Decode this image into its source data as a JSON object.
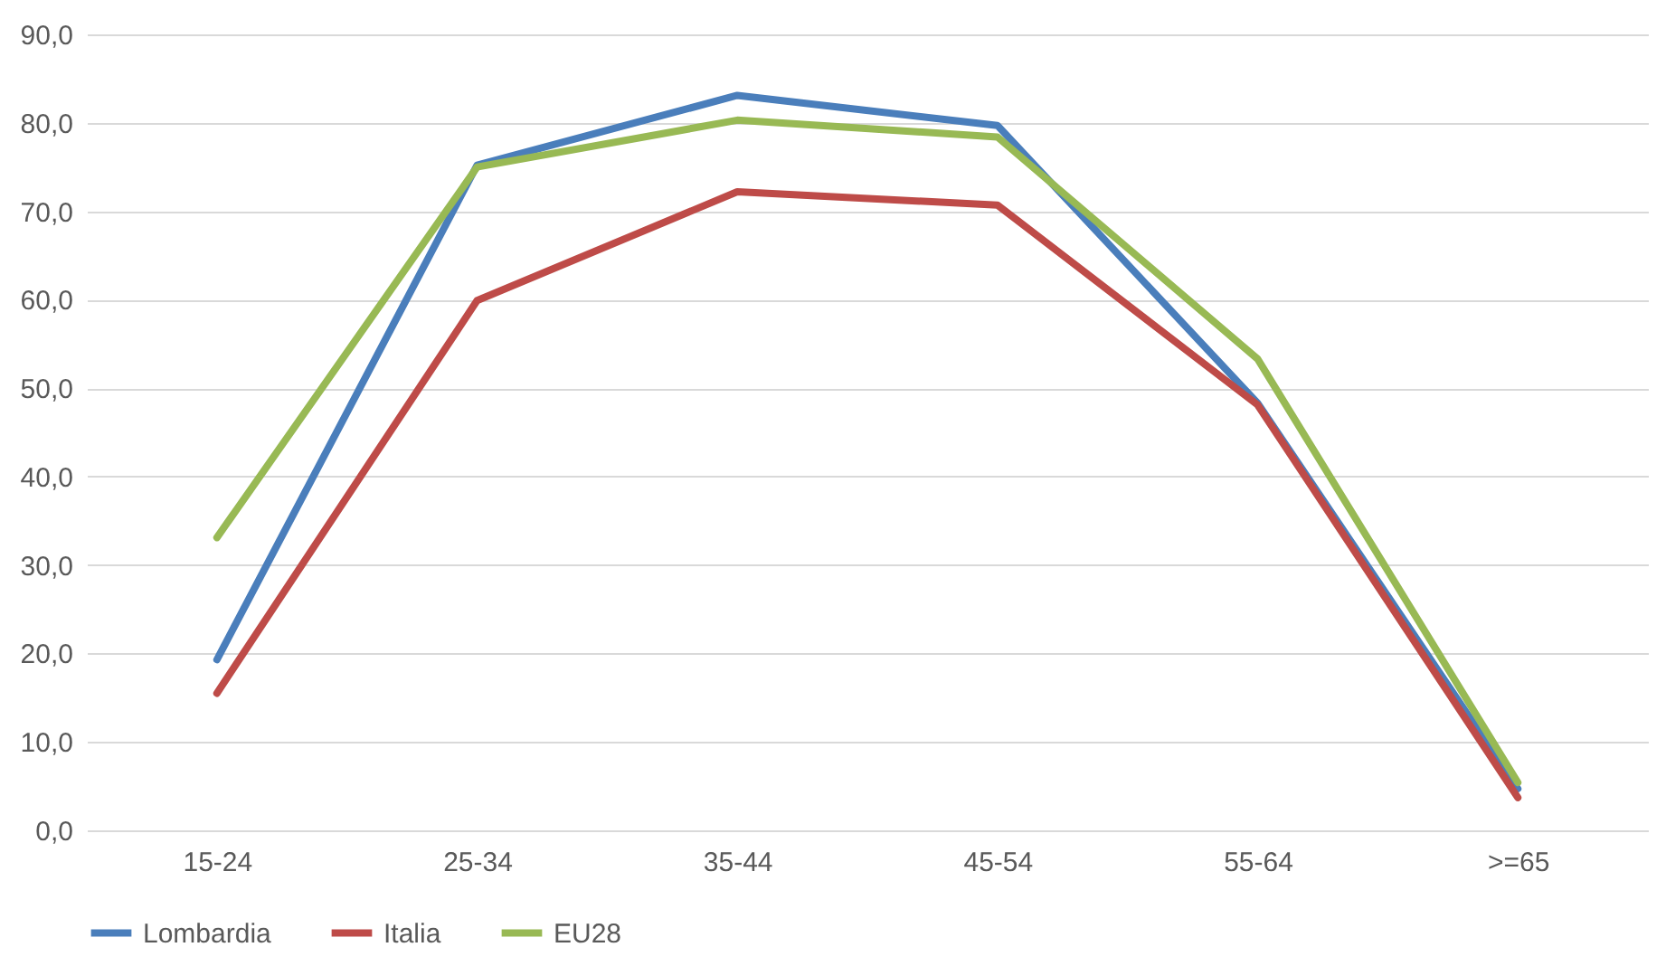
{
  "chart_data": {
    "type": "line",
    "categories": [
      "15-24",
      "25-34",
      "35-44",
      "45-54",
      "55-64",
      ">=65"
    ],
    "series": [
      {
        "name": "Lombardia",
        "color": "#4a7ebb",
        "values": [
          19.3,
          75.2,
          83.1,
          79.7,
          48.3,
          4.7
        ]
      },
      {
        "name": "Italia",
        "color": "#be4b48",
        "values": [
          15.5,
          59.9,
          72.2,
          70.7,
          48.1,
          3.7
        ]
      },
      {
        "name": "EU28",
        "color": "#98b954",
        "values": [
          33.1,
          75.0,
          80.3,
          78.4,
          53.3,
          5.4
        ]
      }
    ],
    "ylim": [
      0,
      90
    ],
    "yticks": [
      {
        "value": 0,
        "label": "0,0"
      },
      {
        "value": 10,
        "label": "10,0"
      },
      {
        "value": 20,
        "label": "20,0"
      },
      {
        "value": 30,
        "label": "30,0"
      },
      {
        "value": 40,
        "label": "40,0"
      },
      {
        "value": 50,
        "label": "50,0"
      },
      {
        "value": 60,
        "label": "60,0"
      },
      {
        "value": 70,
        "label": "70,0"
      },
      {
        "value": 80,
        "label": "80,0"
      },
      {
        "value": 90,
        "label": "90,0"
      }
    ],
    "grid": "y",
    "legend": "bottom",
    "marker": "none",
    "line_style": "solid"
  }
}
